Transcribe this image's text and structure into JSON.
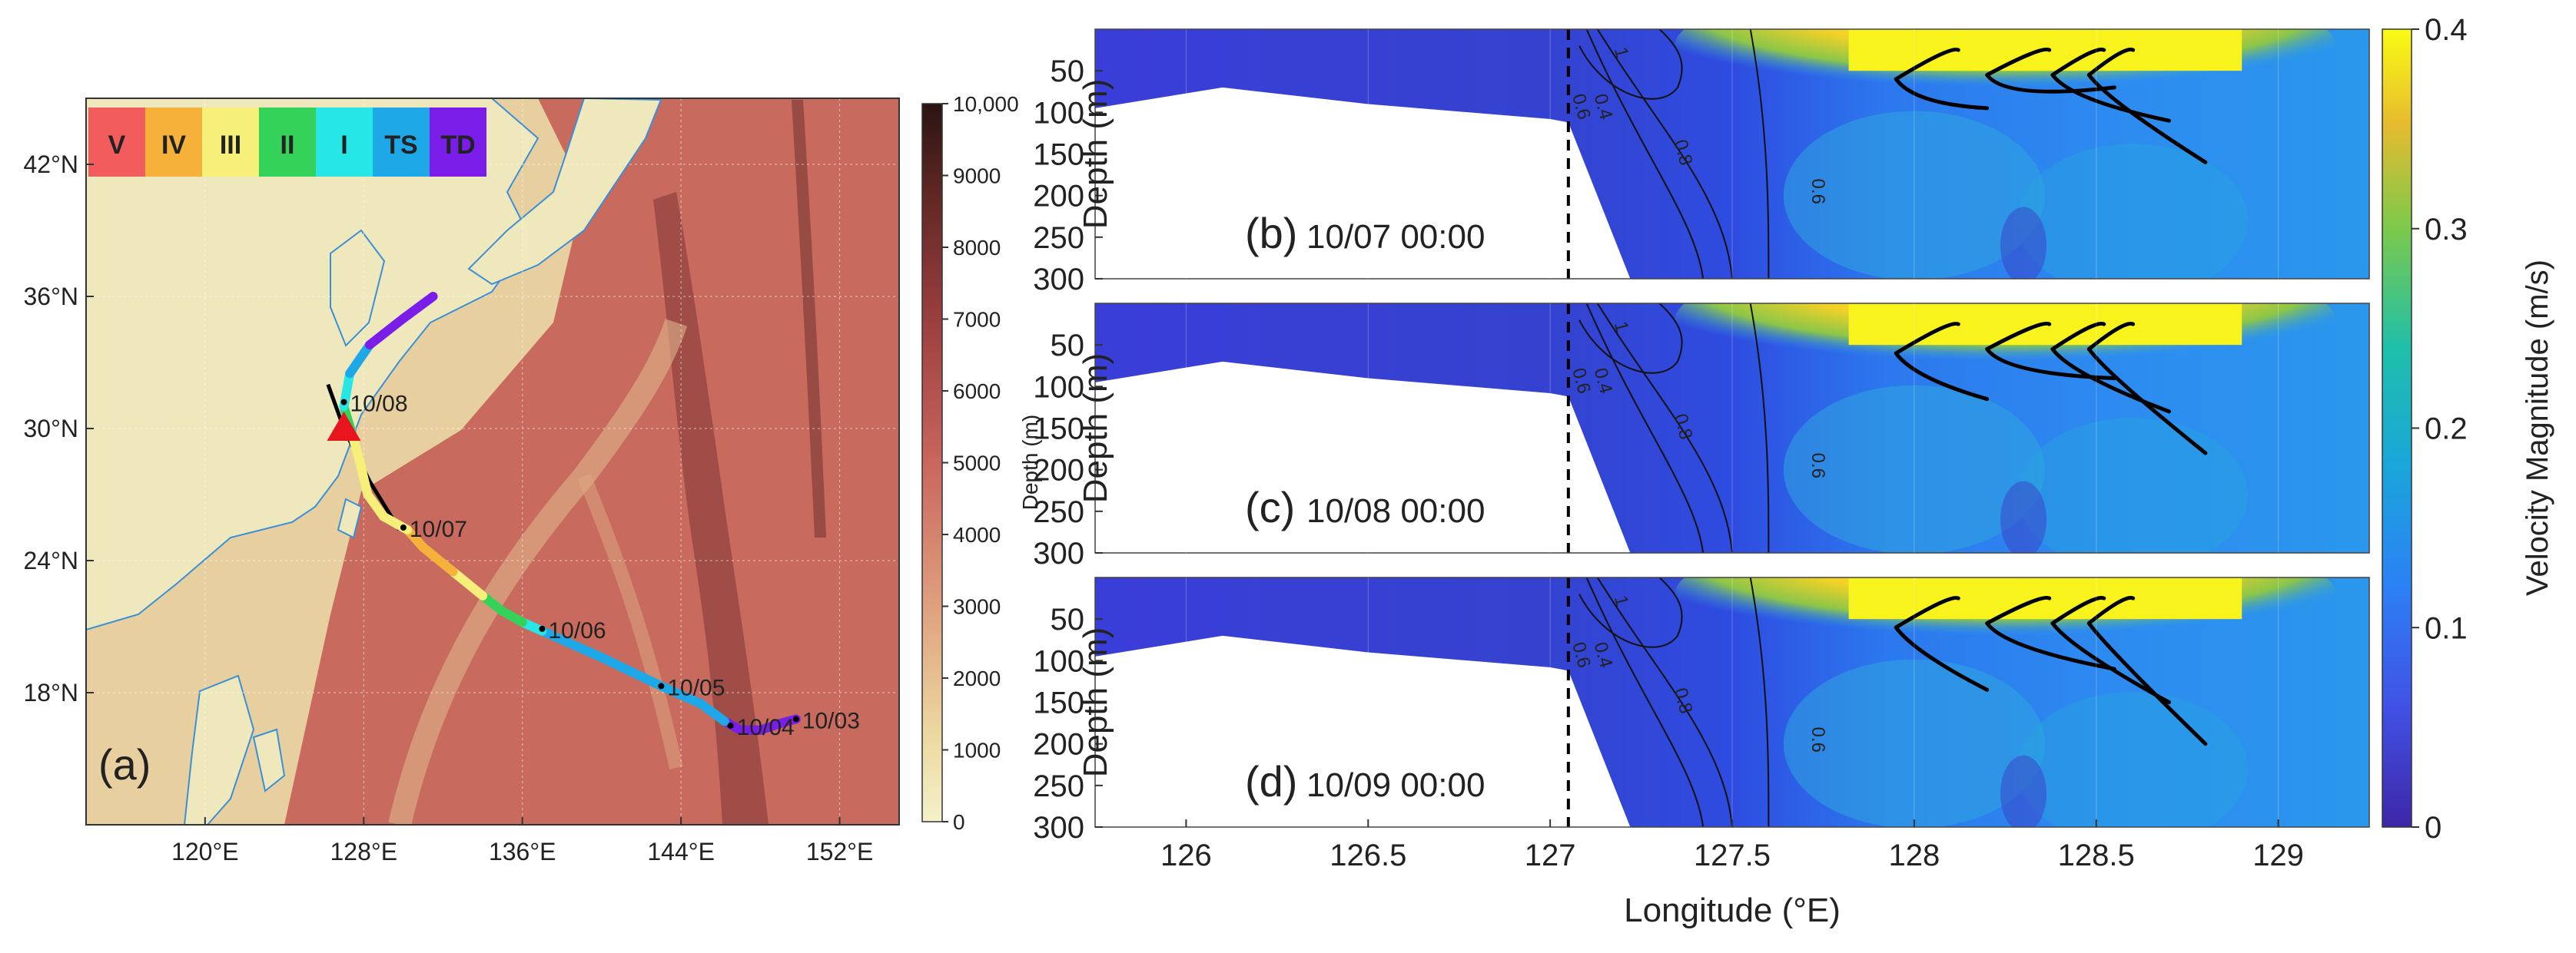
{
  "colors": {
    "V": "#f25c5c",
    "IV": "#f5b13a",
    "III": "#f6f07a",
    "II": "#35d25a",
    "I": "#27e6e6",
    "TS": "#1ea8e8",
    "TD": "#7a1de8",
    "land": "#efe8bd",
    "coast": "#3a8fd6",
    "track_black": "#000000",
    "typhoon_marker": "#e8141e"
  },
  "chart_data": [
    {
      "type": "map",
      "panel_label": "(a)",
      "xlim": [
        114,
        155
      ],
      "ylim": [
        12,
        45
      ],
      "xticks": [
        {
          "value": 120,
          "label": "120°E"
        },
        {
          "value": 128,
          "label": "128°E"
        },
        {
          "value": 136,
          "label": "136°E"
        },
        {
          "value": 144,
          "label": "144°E"
        },
        {
          "value": 152,
          "label": "152°E"
        }
      ],
      "yticks": [
        {
          "value": 18,
          "label": "18°N"
        },
        {
          "value": 24,
          "label": "24°N"
        },
        {
          "value": 30,
          "label": "30°N"
        },
        {
          "value": 36,
          "label": "36°N"
        },
        {
          "value": 42,
          "label": "42°N"
        }
      ],
      "legend": [
        {
          "key": "V",
          "label": "V"
        },
        {
          "key": "IV",
          "label": "IV"
        },
        {
          "key": "III",
          "label": "III"
        },
        {
          "key": "II",
          "label": "II"
        },
        {
          "key": "I",
          "label": "I"
        },
        {
          "key": "TS",
          "label": "TS"
        },
        {
          "key": "TD",
          "label": "TD"
        }
      ],
      "colorbar": {
        "label": "Depth (m)",
        "min": 0,
        "max": 10000,
        "ticks": [
          {
            "value": 0,
            "label": "0"
          },
          {
            "value": 1000,
            "label": "1000"
          },
          {
            "value": 2000,
            "label": "2000"
          },
          {
            "value": 3000,
            "label": "3000"
          },
          {
            "value": 4000,
            "label": "4000"
          },
          {
            "value": 5000,
            "label": "5000"
          },
          {
            "value": 6000,
            "label": "6000"
          },
          {
            "value": 7000,
            "label": "7000"
          },
          {
            "value": 8000,
            "label": "8000"
          },
          {
            "value": 9000,
            "label": "9000"
          },
          {
            "value": 10000,
            "label": "10,000"
          }
        ]
      },
      "track": [
        {
          "lon": 149.8,
          "lat": 16.8,
          "cat": "TD"
        },
        {
          "lon": 149.0,
          "lat": 16.6,
          "cat": "TD"
        },
        {
          "lon": 148.0,
          "lat": 16.3,
          "cat": "TD"
        },
        {
          "lon": 147.0,
          "lat": 16.3,
          "cat": "TD"
        },
        {
          "lon": 146.2,
          "lat": 16.7,
          "cat": "TS"
        },
        {
          "lon": 145.0,
          "lat": 17.5,
          "cat": "TS"
        },
        {
          "lon": 143.0,
          "lat": 18.3,
          "cat": "TS"
        },
        {
          "lon": 140.0,
          "lat": 19.6,
          "cat": "TS"
        },
        {
          "lon": 138.0,
          "lat": 20.4,
          "cat": "TS"
        },
        {
          "lon": 137.0,
          "lat": 20.8,
          "cat": "I"
        },
        {
          "lon": 136.0,
          "lat": 21.2,
          "cat": "II"
        },
        {
          "lon": 135.0,
          "lat": 21.7,
          "cat": "II"
        },
        {
          "lon": 134.0,
          "lat": 22.4,
          "cat": "III"
        },
        {
          "lon": 132.5,
          "lat": 23.5,
          "cat": "IV"
        },
        {
          "lon": 131.0,
          "lat": 24.6,
          "cat": "IV"
        },
        {
          "lon": 130.2,
          "lat": 25.4,
          "cat": "III"
        },
        {
          "lon": 129.0,
          "lat": 26.0,
          "cat": "III"
        },
        {
          "lon": 128.2,
          "lat": 27.0,
          "cat": "III"
        },
        {
          "lon": 127.8,
          "lat": 28.5,
          "cat": "III"
        },
        {
          "lon": 127.4,
          "lat": 29.8,
          "cat": "II"
        },
        {
          "lon": 127.0,
          "lat": 31.0,
          "cat": "I"
        },
        {
          "lon": 127.3,
          "lat": 32.5,
          "cat": "TS"
        },
        {
          "lon": 128.3,
          "lat": 33.8,
          "cat": "TD"
        },
        {
          "lon": 130.0,
          "lat": 35.0,
          "cat": "TD"
        },
        {
          "lon": 131.5,
          "lat": 36.0,
          "cat": "TD"
        }
      ],
      "black_track": [
        {
          "lon": 126.2,
          "lat": 32.0
        },
        {
          "lon": 127.0,
          "lat": 30.0
        },
        {
          "lon": 128.3,
          "lat": 27.6
        },
        {
          "lon": 129.8,
          "lat": 25.4
        }
      ],
      "date_labels": [
        {
          "lon": 149.8,
          "lat": 16.8,
          "label": "10/03"
        },
        {
          "lon": 146.5,
          "lat": 16.5,
          "label": "10/04"
        },
        {
          "lon": 143.0,
          "lat": 18.3,
          "label": "10/05"
        },
        {
          "lon": 137.0,
          "lat": 20.9,
          "label": "10/06"
        },
        {
          "lon": 130.0,
          "lat": 25.5,
          "label": "10/07"
        },
        {
          "lon": 127.0,
          "lat": 31.2,
          "label": "10/08"
        }
      ],
      "marker": {
        "lon": 127.0,
        "lat": 30.0,
        "shape": "triangle"
      }
    },
    {
      "type": "contour-section",
      "xlim": [
        125.75,
        129.25
      ],
      "ylim": [
        0,
        300
      ],
      "xlabel": "Longitude (°E)",
      "ylabel": "Depth (m)",
      "xticks": [
        {
          "value": 126,
          "label": "126"
        },
        {
          "value": 126.5,
          "label": "126.5"
        },
        {
          "value": 127,
          "label": "127"
        },
        {
          "value": 127.5,
          "label": "127.5"
        },
        {
          "value": 128,
          "label": "128"
        },
        {
          "value": 128.5,
          "label": "128.5"
        },
        {
          "value": 129,
          "label": "129"
        }
      ],
      "yticks": [
        {
          "value": 50,
          "label": "50"
        },
        {
          "value": 100,
          "label": "100"
        },
        {
          "value": 150,
          "label": "150"
        },
        {
          "value": 200,
          "label": "200"
        },
        {
          "value": 250,
          "label": "250"
        },
        {
          "value": 300,
          "label": "300"
        }
      ],
      "dashed_longitude": 127.05,
      "shelf_bottom": [
        {
          "lon": 125.75,
          "depth": 95
        },
        {
          "lon": 126.1,
          "depth": 70
        },
        {
          "lon": 126.5,
          "depth": 90
        },
        {
          "lon": 127.0,
          "depth": 108
        },
        {
          "lon": 127.05,
          "depth": 112
        },
        {
          "lon": 127.22,
          "depth": 300
        }
      ],
      "contour_labels": [
        {
          "label": "1"
        },
        {
          "label": "0.6"
        },
        {
          "label": "0.4"
        },
        {
          "label": "0.8"
        },
        {
          "label": "0.6"
        }
      ],
      "colorbar": {
        "label": "Velocity Magnitude (m/s)",
        "min": 0,
        "max": 0.4,
        "ticks": [
          {
            "value": 0,
            "label": "0"
          },
          {
            "value": 0.1,
            "label": "0.1"
          },
          {
            "value": 0.2,
            "label": "0.2"
          },
          {
            "value": 0.3,
            "label": "0.3"
          },
          {
            "value": 0.4,
            "label": "0.4"
          }
        ]
      },
      "panels": [
        {
          "label": "(b)",
          "time": "10/07 00:00"
        },
        {
          "label": "(c)",
          "time": "10/08 00:00"
        },
        {
          "label": "(d)",
          "time": "10/09 00:00"
        }
      ]
    }
  ]
}
